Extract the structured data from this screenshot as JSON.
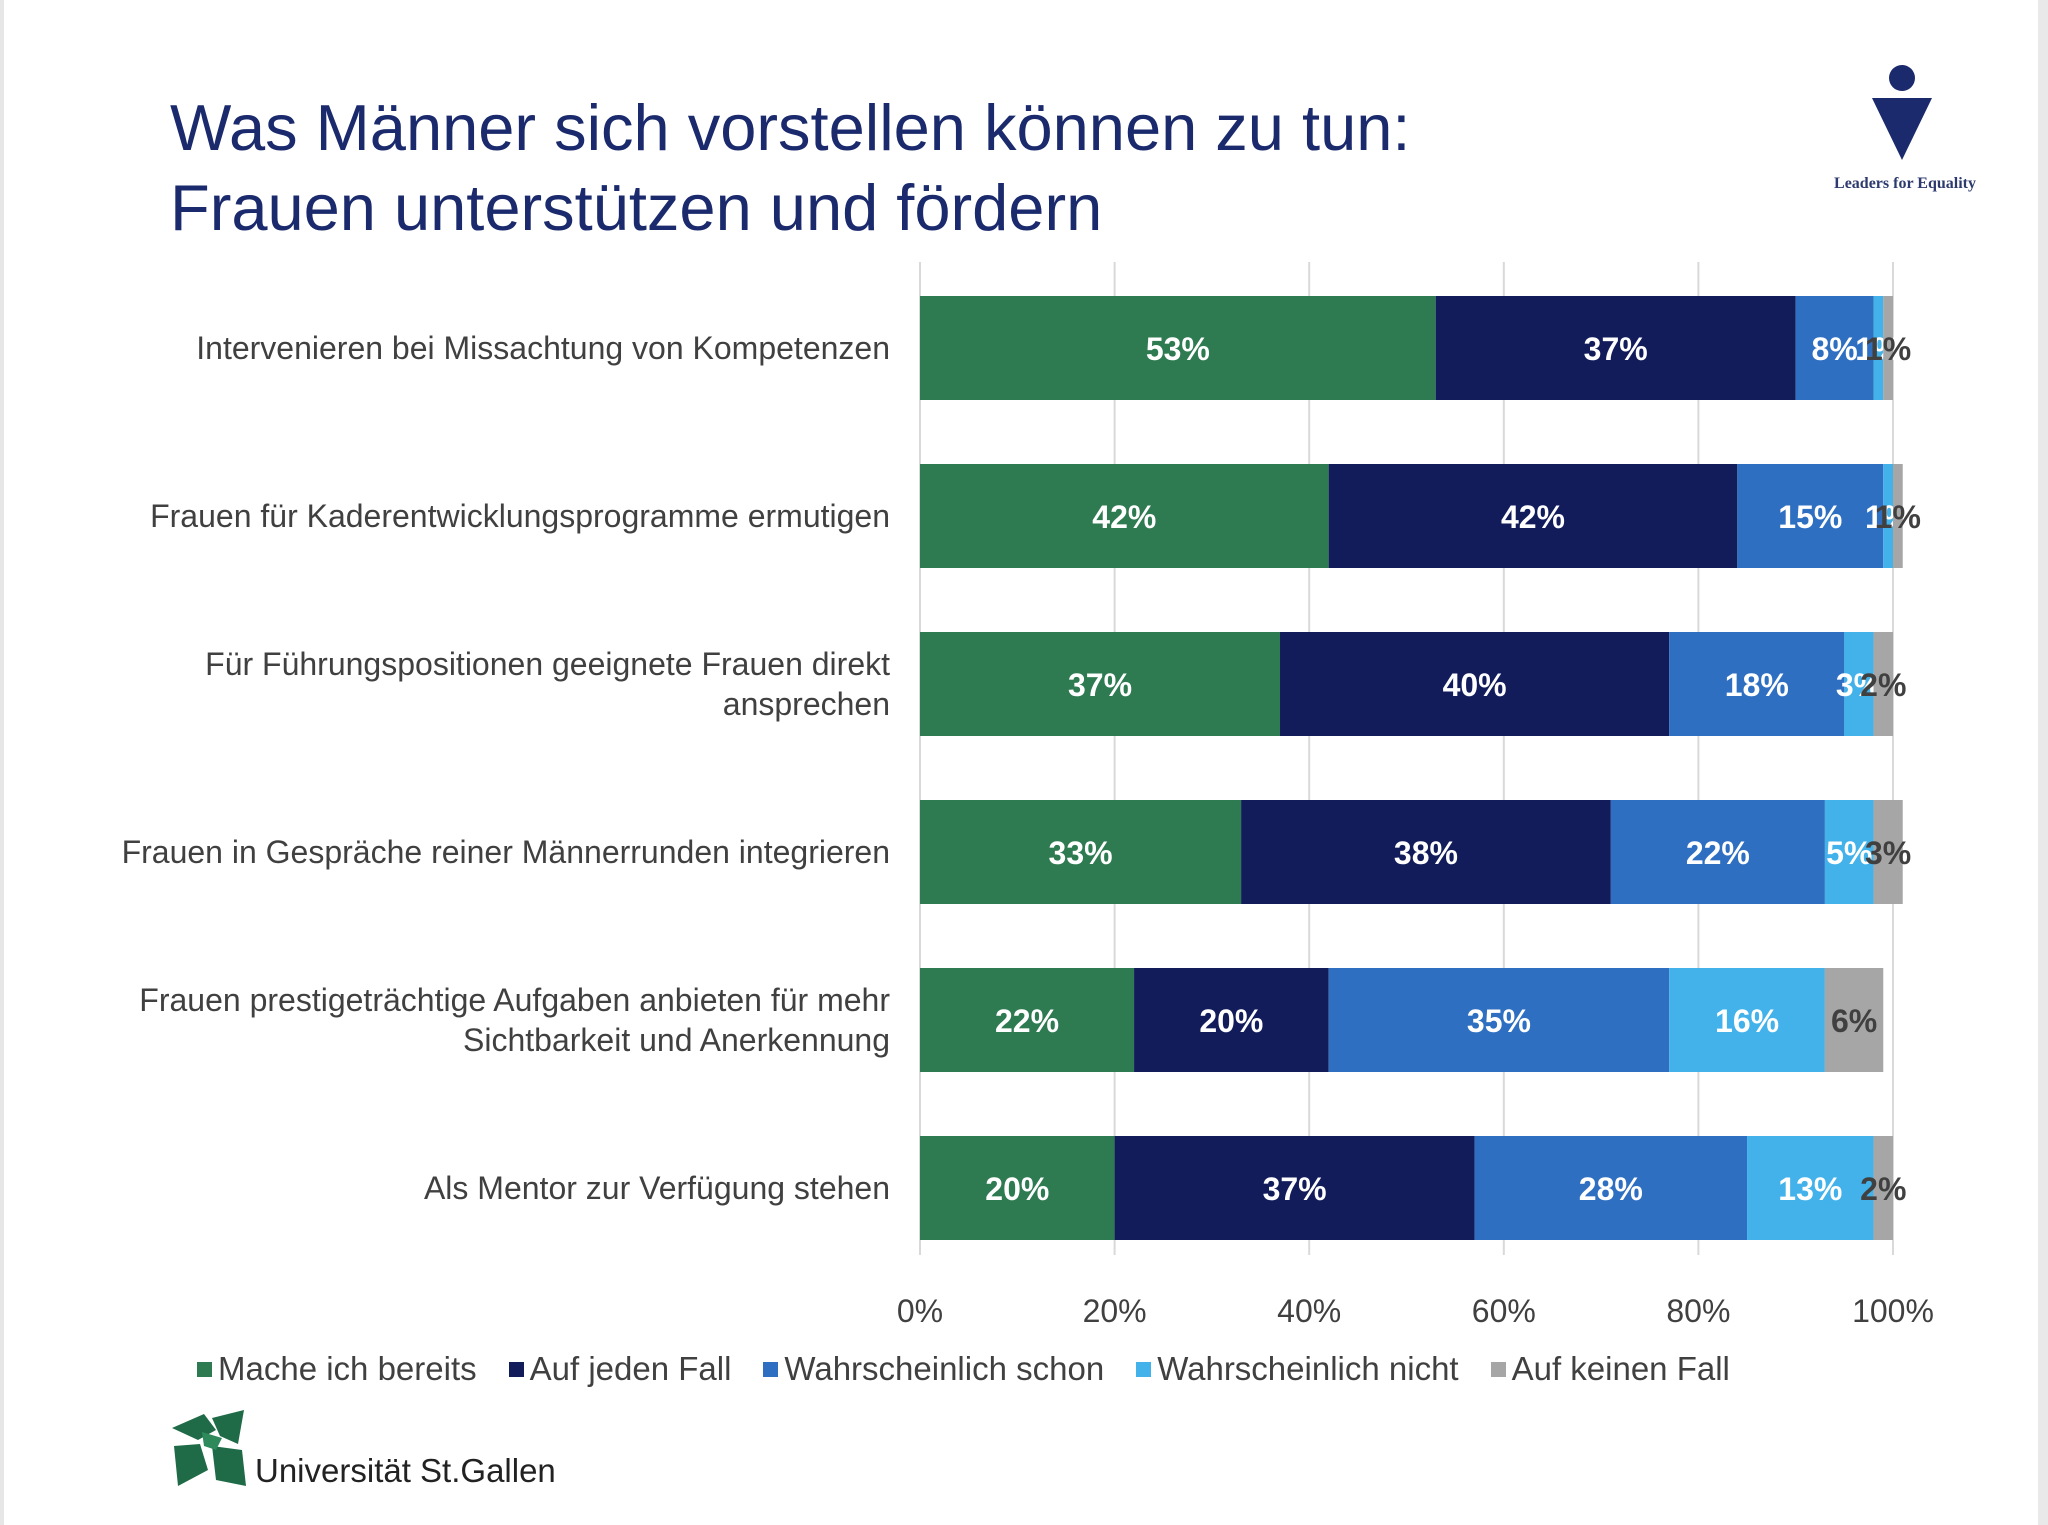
{
  "title_lines": [
    "Was Männer sich vorstellen können zu tun:",
    "Frauen unterstützen und fördern"
  ],
  "logo_text": "Leaders for Equality",
  "university": "Universität St.Gallen",
  "colors": {
    "title": "#1a2a6c",
    "series": [
      "#2e7a51",
      "#121c5a",
      "#2f6fc1",
      "#43b2ea",
      "#a6a6a6"
    ]
  },
  "chart_data": {
    "type": "bar",
    "orientation": "horizontal",
    "stacked": true,
    "categories": [
      [
        "Intervenieren bei Missachtung von Kompetenzen"
      ],
      [
        "Frauen für Kaderentwicklungsprogramme ermutigen"
      ],
      [
        "Für Führungspositionen geeignete Frauen direkt",
        "ansprechen"
      ],
      [
        "Frauen in Gespräche reiner Männerrunden integrieren"
      ],
      [
        "Frauen prestigeträchtige Aufgaben anbieten für mehr",
        "Sichtbarkeit und Anerkennung"
      ],
      [
        "Als Mentor zur Verfügung stehen"
      ]
    ],
    "series": [
      {
        "name": "Mache ich bereits",
        "values": [
          53,
          42,
          37,
          33,
          22,
          20
        ]
      },
      {
        "name": "Auf jeden Fall",
        "values": [
          37,
          42,
          40,
          38,
          20,
          37
        ]
      },
      {
        "name": "Wahrscheinlich schon",
        "values": [
          8,
          15,
          18,
          22,
          35,
          28
        ]
      },
      {
        "name": "Wahrscheinlich nicht",
        "values": [
          1,
          1,
          3,
          5,
          16,
          13
        ]
      },
      {
        "name": "Auf keinen Fall",
        "values": [
          1,
          1,
          2,
          3,
          6,
          2
        ]
      }
    ],
    "xlim": [
      0,
      100
    ],
    "xticks": [
      "0%",
      "20%",
      "40%",
      "60%",
      "80%",
      "100%"
    ],
    "value_suffix": "%",
    "grid": true,
    "legend": "bottom"
  }
}
